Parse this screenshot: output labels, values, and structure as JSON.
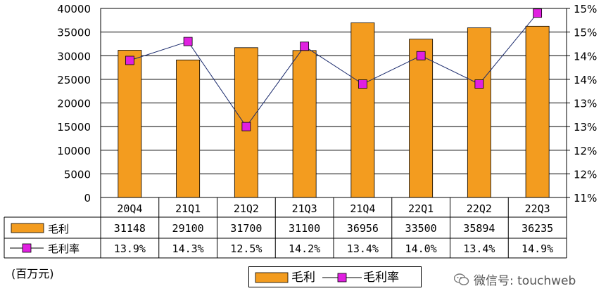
{
  "chart_data": {
    "type": "bar",
    "categories": [
      "20Q4",
      "21Q1",
      "21Q2",
      "21Q3",
      "21Q4",
      "22Q1",
      "22Q2",
      "22Q3"
    ],
    "series": [
      {
        "name": "毛利",
        "type": "bar",
        "axis": "left",
        "values": [
          31148,
          29100,
          31700,
          31100,
          36956,
          33500,
          35894,
          36235
        ],
        "color": "#F39C1F"
      },
      {
        "name": "毛利率",
        "type": "line",
        "axis": "right",
        "values": [
          13.9,
          14.3,
          12.5,
          14.2,
          13.4,
          14.0,
          13.4,
          14.9
        ],
        "color": "#E020E0"
      }
    ],
    "table_labels": [
      "13.9%",
      "14.3%",
      "12.5%",
      "14.2%",
      "13.4%",
      "14.0%",
      "13.4%",
      "14.9%"
    ],
    "ylim_left": [
      0,
      40000
    ],
    "yticks_left": [
      "0",
      "5000",
      "10000",
      "15000",
      "20000",
      "25000",
      "30000",
      "35000",
      "40000"
    ],
    "ylim_right": [
      11.0,
      15.0
    ],
    "yticks_right": [
      "11%",
      "12%",
      "12%",
      "13%",
      "13%",
      "14%",
      "14%",
      "15%",
      "15%"
    ],
    "grid": true,
    "unit_label": "(百万元)",
    "legend_position": "bottom-center"
  },
  "watermark": "微信号: touchweb"
}
